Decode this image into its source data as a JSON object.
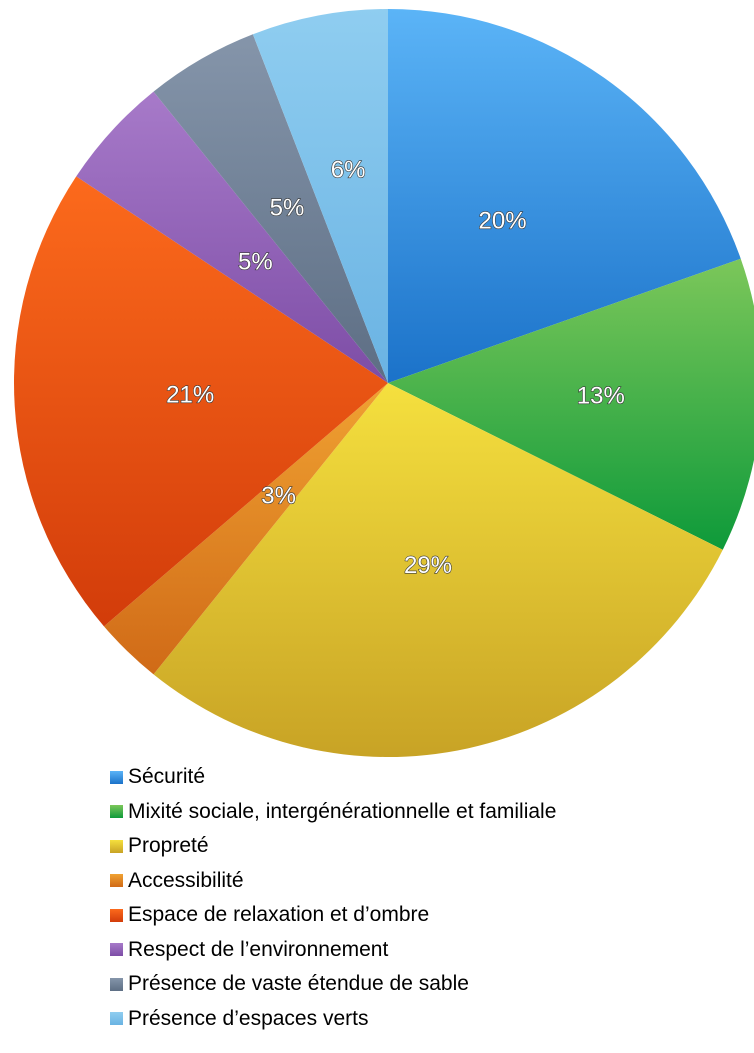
{
  "chart_data": {
    "type": "pie",
    "legend_position": "bottom",
    "slices": [
      {
        "label": "Sécurité",
        "value": 20,
        "display": "20%",
        "color_light": "#5bb4f7",
        "color_dark": "#1b72c9",
        "swatch": "#1f86e0"
      },
      {
        "label": "Mixité sociale, intergénérationnelle et familiale",
        "value": 13,
        "display": "13%",
        "color_light": "#7cc75a",
        "color_dark": "#0e9a3a",
        "swatch": "#2aa83f"
      },
      {
        "label": "Propreté",
        "value": 29,
        "display": "29%",
        "color_light": "#f5e03e",
        "color_dark": "#c8a325",
        "swatch": "#e6c631"
      },
      {
        "label": "Accessibilité",
        "value": 3,
        "display": "3%",
        "color_light": "#f0a232",
        "color_dark": "#d06a17",
        "swatch": "#e98a22"
      },
      {
        "label": "Espace de relaxation et d’ombre",
        "value": 21,
        "display": "21%",
        "color_light": "#fc6a1c",
        "color_dark": "#d23c0a",
        "swatch": "#e8500f"
      },
      {
        "label": "Respect de l’environnement",
        "value": 5,
        "display": "5%",
        "color_light": "#a77ac9",
        "color_dark": "#7d4da6",
        "swatch": "#8d5cb5"
      },
      {
        "label": "Présence de vaste étendue de sable",
        "value": 5,
        "display": "5%",
        "color_light": "#8595aa",
        "color_dark": "#5d6e84",
        "swatch": "#6c7d93"
      },
      {
        "label": "Présence d’espaces verts",
        "value": 6,
        "display": "6%",
        "color_light": "#8fcdf0",
        "color_dark": "#6ab3e3",
        "swatch": "#7ac0ea"
      }
    ]
  }
}
